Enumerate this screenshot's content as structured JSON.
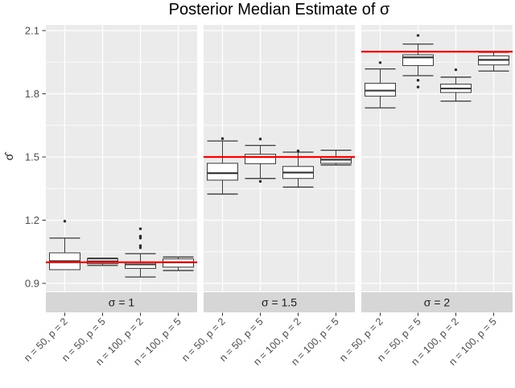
{
  "chart_data": {
    "type": "boxplot",
    "title": "Posterior Median Estimate of σ",
    "ylabel": "σ̂",
    "y_ticks": [
      "0.9",
      "1.2",
      "1.5",
      "1.8",
      "2.1"
    ],
    "y_tick_values": [
      0.9,
      1.2,
      1.5,
      1.8,
      2.1
    ],
    "y_minor_tick_values": [
      1.05,
      1.35,
      1.65,
      1.95
    ],
    "ylim": [
      0.86,
      2.13
    ],
    "categories": [
      "n = 50, p = 2",
      "n = 50, p = 5",
      "n = 100, p = 2",
      "n = 100, p = 5"
    ],
    "grid": true,
    "legend": "none",
    "colors": {
      "panel_bg": "#EBEBEB",
      "strip_bg": "#D6D6D6",
      "gridline": "#FFFFFF",
      "box_border": "#3A3A3A",
      "box_fill": "#FFFFFF",
      "outlier": "#2B2B2B",
      "reference_line": "#FF0000",
      "axis_text": "#4D4D4D",
      "strip_text": "#1A1A1A",
      "tick_mark": "#333333"
    },
    "facets": [
      {
        "label": "σ = 1",
        "reference_value": 1.0,
        "boxes": [
          {
            "category": "n = 50, p = 2",
            "whisker_low": 0.965,
            "q1": 0.965,
            "median": 1.005,
            "q3": 1.045,
            "whisker_high": 1.115,
            "outliers": [
              1.195
            ]
          },
          {
            "category": "n = 50, p = 5",
            "whisker_low": 0.985,
            "q1": 0.993,
            "median": 1.004,
            "q3": 1.016,
            "whisker_high": 1.02,
            "outliers": []
          },
          {
            "category": "n = 100, p = 2",
            "whisker_low": 0.93,
            "q1": 0.971,
            "median": 0.99,
            "q3": 1.0,
            "whisker_high": 1.041,
            "outliers": [
              1.069,
              1.079,
              1.115,
              1.124,
              1.159
            ]
          },
          {
            "category": "n = 100, p = 5",
            "whisker_low": 0.961,
            "q1": 0.977,
            "median": 1.0,
            "q3": 1.016,
            "whisker_high": 1.025,
            "outliers": []
          }
        ]
      },
      {
        "label": "σ = 1.5",
        "reference_value": 1.5,
        "boxes": [
          {
            "category": "n = 50, p = 2",
            "whisker_low": 1.324,
            "q1": 1.39,
            "median": 1.423,
            "q3": 1.47,
            "whisker_high": 1.576,
            "outliers": [
              1.587
            ]
          },
          {
            "category": "n = 50, p = 5",
            "whisker_low": 1.398,
            "q1": 1.468,
            "median": 1.5,
            "q3": 1.513,
            "whisker_high": 1.555,
            "outliers": [
              1.384,
              1.585
            ]
          },
          {
            "category": "n = 100, p = 2",
            "whisker_low": 1.357,
            "q1": 1.398,
            "median": 1.426,
            "q3": 1.455,
            "whisker_high": 1.523,
            "outliers": [
              1.529
            ]
          },
          {
            "category": "n = 100, p = 5",
            "whisker_low": 1.462,
            "q1": 1.47,
            "median": 1.487,
            "q3": 1.5,
            "whisker_high": 1.532,
            "outliers": []
          }
        ]
      },
      {
        "label": "σ = 2",
        "reference_value": 2.0,
        "boxes": [
          {
            "category": "n = 50, p = 2",
            "whisker_low": 1.733,
            "q1": 1.789,
            "median": 1.815,
            "q3": 1.85,
            "whisker_high": 1.918,
            "outliers": [
              1.948
            ]
          },
          {
            "category": "n = 50, p = 5",
            "whisker_low": 1.886,
            "q1": 1.934,
            "median": 1.973,
            "q3": 1.985,
            "whisker_high": 2.036,
            "outliers": [
              1.832,
              1.864,
              2.077
            ]
          },
          {
            "category": "n = 100, p = 2",
            "whisker_low": 1.765,
            "q1": 1.806,
            "median": 1.825,
            "q3": 1.846,
            "whisker_high": 1.879,
            "outliers": [
              1.914
            ]
          },
          {
            "category": "n = 100, p = 5",
            "whisker_low": 1.908,
            "q1": 1.937,
            "median": 1.961,
            "q3": 1.98,
            "whisker_high": 1.997,
            "outliers": []
          }
        ]
      }
    ]
  }
}
